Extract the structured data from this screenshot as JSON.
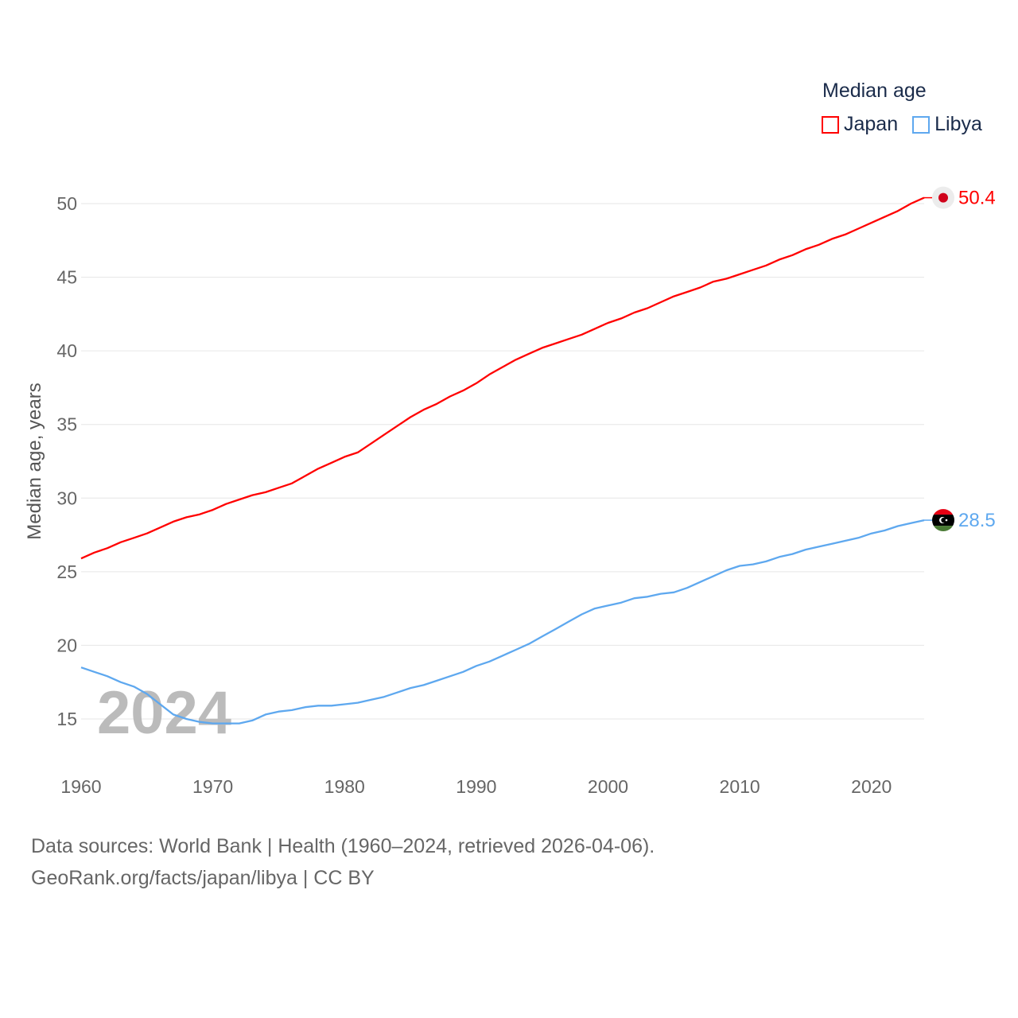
{
  "chart_data": {
    "type": "line",
    "title": "Median age",
    "xlabel": "",
    "ylabel": "Median age, years",
    "xlim": [
      1960,
      2024
    ],
    "ylim": [
      12,
      52
    ],
    "x_ticks": [
      1960,
      1970,
      1980,
      1990,
      2000,
      2010,
      2020
    ],
    "y_ticks": [
      15,
      20,
      25,
      30,
      35,
      40,
      45,
      50
    ],
    "grid": true,
    "legend_position": "top-right",
    "watermark_year": "2024",
    "x": [
      1960,
      1961,
      1962,
      1963,
      1964,
      1965,
      1966,
      1967,
      1968,
      1969,
      1970,
      1971,
      1972,
      1973,
      1974,
      1975,
      1976,
      1977,
      1978,
      1979,
      1980,
      1981,
      1982,
      1983,
      1984,
      1985,
      1986,
      1987,
      1988,
      1989,
      1990,
      1991,
      1992,
      1993,
      1994,
      1995,
      1996,
      1997,
      1998,
      1999,
      2000,
      2001,
      2002,
      2003,
      2004,
      2005,
      2006,
      2007,
      2008,
      2009,
      2010,
      2011,
      2012,
      2013,
      2014,
      2015,
      2016,
      2017,
      2018,
      2019,
      2020,
      2021,
      2022,
      2023,
      2024
    ],
    "series": [
      {
        "name": "Japan",
        "color": "#ff0000",
        "end_label": "50.4",
        "values": [
          25.9,
          26.3,
          26.6,
          27.0,
          27.3,
          27.6,
          28.0,
          28.4,
          28.7,
          28.9,
          29.2,
          29.6,
          29.9,
          30.2,
          30.4,
          30.7,
          31.0,
          31.5,
          32.0,
          32.4,
          32.8,
          33.1,
          33.7,
          34.3,
          34.9,
          35.5,
          36.0,
          36.4,
          36.9,
          37.3,
          37.8,
          38.4,
          38.9,
          39.4,
          39.8,
          40.2,
          40.5,
          40.8,
          41.1,
          41.5,
          41.9,
          42.2,
          42.6,
          42.9,
          43.3,
          43.7,
          44.0,
          44.3,
          44.7,
          44.9,
          45.2,
          45.5,
          45.8,
          46.2,
          46.5,
          46.9,
          47.2,
          47.6,
          47.9,
          48.3,
          48.7,
          49.1,
          49.5,
          50.0,
          50.4
        ]
      },
      {
        "name": "Libya",
        "color": "#5ea8ef",
        "end_label": "28.5",
        "values": [
          18.5,
          18.2,
          17.9,
          17.5,
          17.2,
          16.7,
          16.0,
          15.3,
          15.0,
          14.8,
          14.7,
          14.7,
          14.7,
          14.9,
          15.3,
          15.5,
          15.6,
          15.8,
          15.9,
          15.9,
          16.0,
          16.1,
          16.3,
          16.5,
          16.8,
          17.1,
          17.3,
          17.6,
          17.9,
          18.2,
          18.6,
          18.9,
          19.3,
          19.7,
          20.1,
          20.6,
          21.1,
          21.6,
          22.1,
          22.5,
          22.7,
          22.9,
          23.2,
          23.3,
          23.5,
          23.6,
          23.9,
          24.3,
          24.7,
          25.1,
          25.4,
          25.5,
          25.7,
          26.0,
          26.2,
          26.5,
          26.7,
          26.9,
          27.1,
          27.3,
          27.6,
          27.8,
          28.1,
          28.3,
          28.5
        ]
      }
    ]
  },
  "footer": {
    "line1": "Data sources: World Bank | Health (1960–2024, retrieved 2026-04-06).",
    "line2": "GeoRank.org/facts/japan/libya | CC BY"
  }
}
